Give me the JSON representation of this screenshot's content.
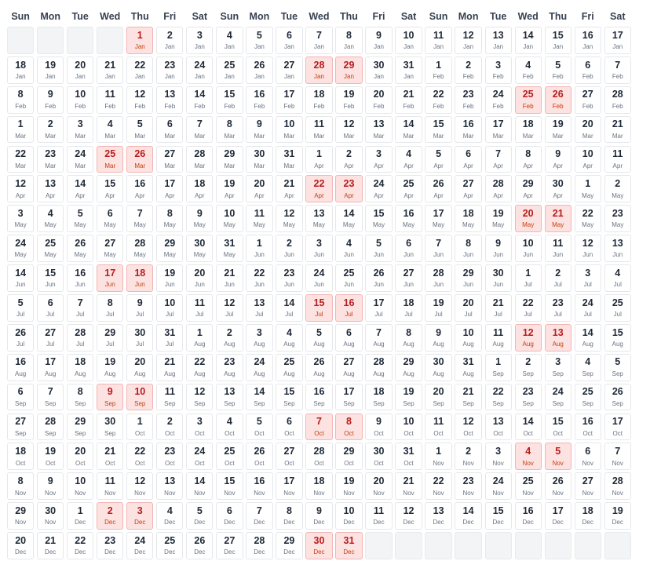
{
  "calendar": {
    "weekday_headers": [
      "Sun",
      "Mon",
      "Tue",
      "Wed",
      "Thu",
      "Fri",
      "Sat",
      "Sun",
      "Mon",
      "Tue",
      "Wed",
      "Thu",
      "Fri",
      "Sat",
      "Sun",
      "Mon",
      "Tue",
      "Wed",
      "Thu",
      "Fri",
      "Sat"
    ],
    "leading_empty_cells": 4,
    "months": [
      {
        "label": "Jan",
        "days": 31
      },
      {
        "label": "Feb",
        "days": 28
      },
      {
        "label": "Mar",
        "days": 31
      },
      {
        "label": "Apr",
        "days": 30
      },
      {
        "label": "May",
        "days": 31
      },
      {
        "label": "Jun",
        "days": 30
      },
      {
        "label": "Jul",
        "days": 31
      },
      {
        "label": "Aug",
        "days": 31
      },
      {
        "label": "Sep",
        "days": 30
      },
      {
        "label": "Oct",
        "days": 31
      },
      {
        "label": "Nov",
        "days": 30
      },
      {
        "label": "Dec",
        "days": 31
      }
    ],
    "highlighted": [
      "Jan 1",
      "Jan 28",
      "Jan 29",
      "Feb 25",
      "Feb 26",
      "Mar 25",
      "Mar 26",
      "Apr 22",
      "Apr 23",
      "May 20",
      "May 21",
      "Jun 17",
      "Jun 18",
      "Jul 15",
      "Jul 16",
      "Aug 12",
      "Aug 13",
      "Sep 9",
      "Sep 10",
      "Oct 7",
      "Oct 8",
      "Nov 4",
      "Nov 5",
      "Dec 2",
      "Dec 3",
      "Dec 30",
      "Dec 31"
    ],
    "colors": {
      "highlight_bg": "#fde2e2",
      "highlight_text": "#b91c1c",
      "empty_bg": "#f3f4f6"
    }
  }
}
